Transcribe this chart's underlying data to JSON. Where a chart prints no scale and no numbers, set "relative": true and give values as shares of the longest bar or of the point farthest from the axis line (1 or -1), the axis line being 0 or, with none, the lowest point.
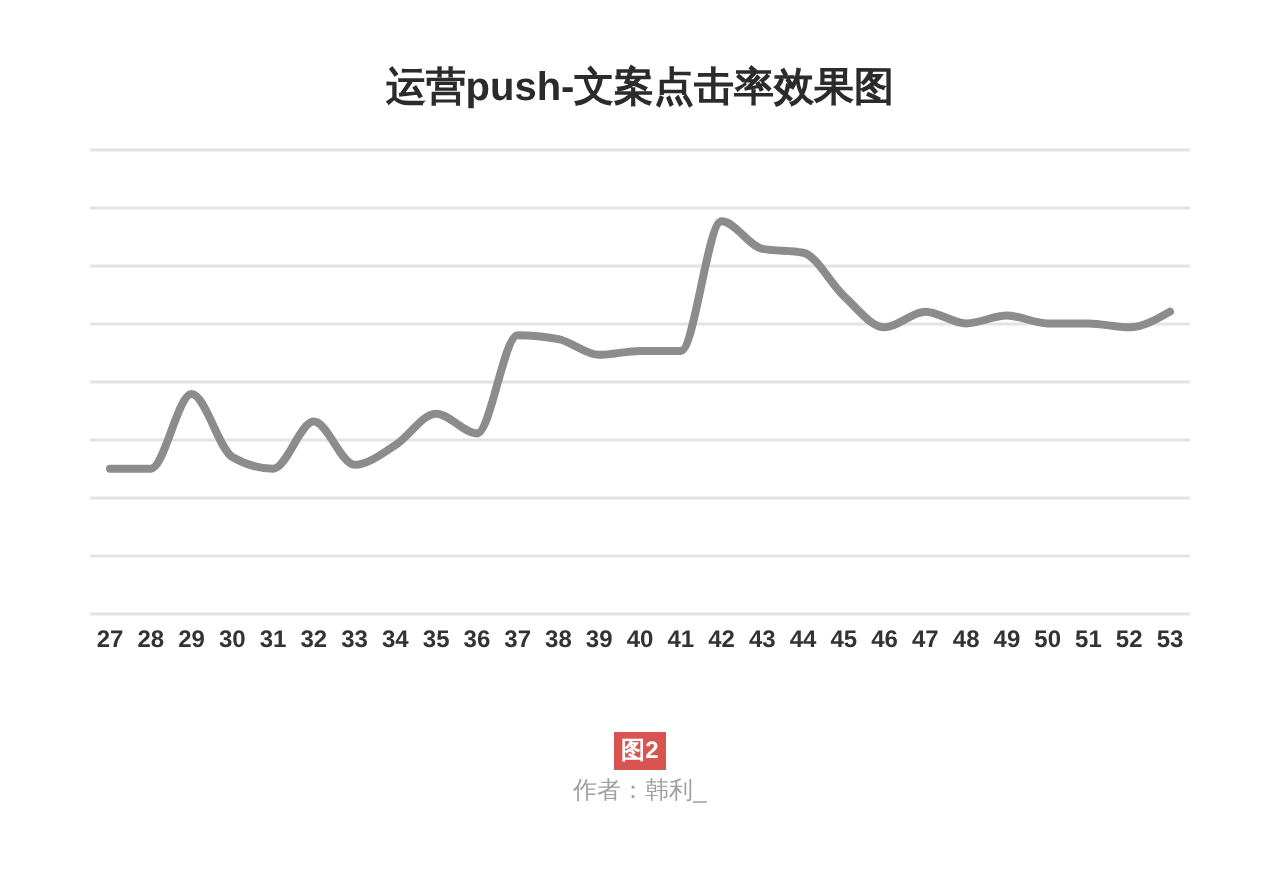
{
  "chart_data": {
    "type": "line",
    "title": "运营push-文案点击率效果图",
    "annotations": [
      "图2",
      "作者：韩利_"
    ],
    "categories": [
      "27",
      "28",
      "29",
      "30",
      "31",
      "32",
      "33",
      "34",
      "35",
      "36",
      "37",
      "38",
      "39",
      "40",
      "41",
      "42",
      "43",
      "44",
      "45",
      "46",
      "47",
      "48",
      "49",
      "50",
      "51",
      "52",
      "53"
    ],
    "series": [
      {
        "color": "#8c8c8c",
        "values": [
          0.37,
          0.37,
          0.56,
          0.4,
          0.37,
          0.49,
          0.38,
          0.43,
          0.51,
          0.46,
          0.71,
          0.7,
          0.66,
          0.67,
          0.67,
          1,
          0.93,
          0.92,
          0.81,
          0.73,
          0.77,
          0.74,
          0.76,
          0.74,
          0.74,
          0.73,
          0.77
        ]
      }
    ],
    "relative": true,
    "grid": "y"
  }
}
